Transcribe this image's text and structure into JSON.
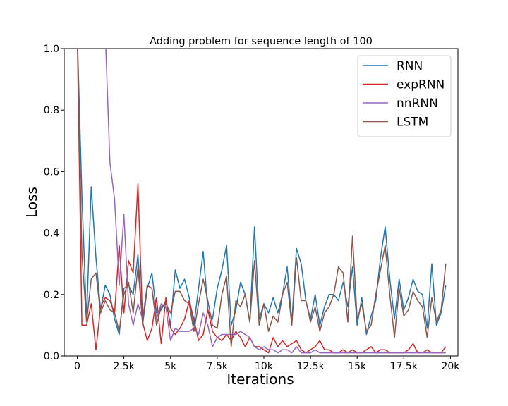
{
  "chart_data": {
    "type": "line",
    "title": "Adding problem for sequence length of 100",
    "xlabel": "Iterations",
    "ylabel": "Loss",
    "xlim": [
      -700,
      20400
    ],
    "ylim": [
      0,
      1.0
    ],
    "xticks": [
      0,
      2500,
      5000,
      7500,
      10000,
      12500,
      15000,
      17500,
      20000
    ],
    "xtick_labels": [
      "0",
      "2.5k",
      "5k",
      "7.5k",
      "10k",
      "12.5k",
      "15k",
      "17.5k",
      "20k"
    ],
    "yticks": [
      0.0,
      0.2,
      0.4,
      0.6,
      0.8,
      1.0
    ],
    "ytick_labels": [
      "0.0",
      "0.2",
      "0.4",
      "0.6",
      "0.8",
      "1.0"
    ],
    "grid": false,
    "legend_position": "top-right",
    "x": [
      0,
      250,
      500,
      750,
      1000,
      1250,
      1500,
      1750,
      2000,
      2250,
      2500,
      2750,
      3000,
      3250,
      3500,
      3750,
      4000,
      4250,
      4500,
      4750,
      5000,
      5250,
      5500,
      5750,
      6000,
      6250,
      6500,
      6750,
      7000,
      7250,
      7500,
      7750,
      8000,
      8250,
      8500,
      8750,
      9000,
      9250,
      9500,
      9750,
      10000,
      10250,
      10500,
      10750,
      11000,
      11250,
      11500,
      11750,
      12000,
      12250,
      12500,
      12750,
      13000,
      13250,
      13500,
      13750,
      14000,
      14250,
      14500,
      14750,
      15000,
      15250,
      15500,
      15750,
      16000,
      16250,
      16500,
      16750,
      17000,
      17250,
      17500,
      17750,
      18000,
      18250,
      18500,
      18750,
      19000,
      19250,
      19500,
      19750
    ],
    "series": [
      {
        "name": "RNN",
        "color": "#1f77b4",
        "values": [
          1.05,
          0.52,
          0.12,
          0.55,
          0.32,
          0.15,
          0.23,
          0.2,
          0.12,
          0.07,
          0.22,
          0.23,
          0.2,
          0.33,
          0.1,
          0.22,
          0.27,
          0.14,
          0.15,
          0.18,
          0.1,
          0.28,
          0.22,
          0.25,
          0.19,
          0.1,
          0.22,
          0.34,
          0.15,
          0.12,
          0.22,
          0.28,
          0.36,
          0.1,
          0.15,
          0.24,
          0.2,
          0.11,
          0.42,
          0.12,
          0.17,
          0.14,
          0.19,
          0.14,
          0.2,
          0.29,
          0.11,
          0.35,
          0.3,
          0.18,
          0.12,
          0.2,
          0.1,
          0.16,
          0.2,
          0.2,
          0.18,
          0.24,
          0.16,
          0.29,
          0.1,
          0.19,
          0.07,
          0.13,
          0.18,
          0.32,
          0.42,
          0.25,
          0.12,
          0.25,
          0.15,
          0.19,
          0.25,
          0.21,
          0.2,
          0.09,
          0.3,
          0.1,
          0.14,
          0.23
        ]
      },
      {
        "name": "expRNN",
        "color": "#d62728",
        "values": [
          1.05,
          0.1,
          0.1,
          0.17,
          0.02,
          0.16,
          0.19,
          0.18,
          0.14,
          0.36,
          0.14,
          0.31,
          0.27,
          0.56,
          0.11,
          0.05,
          0.09,
          0.19,
          0.04,
          0.19,
          0.09,
          0.07,
          0.09,
          0.12,
          0.18,
          0.12,
          0.05,
          0.07,
          0.15,
          0.08,
          0.06,
          0.05,
          0.07,
          0.05,
          0.08,
          0.06,
          0.03,
          0.06,
          0.03,
          0.03,
          0.02,
          0.01,
          0.06,
          0.03,
          0.05,
          0.03,
          0.04,
          0.05,
          0.02,
          0.01,
          0.02,
          0.03,
          0.05,
          0.02,
          0.02,
          0.01,
          0.01,
          0.02,
          0.01,
          0.02,
          0.01,
          0.01,
          0.02,
          0.03,
          0.01,
          0.02,
          0.02,
          0.01,
          0.01,
          0.01,
          0.01,
          0.02,
          0.04,
          0.01,
          0.01,
          0.02,
          0.01,
          0.01,
          0.01,
          0.03
        ]
      },
      {
        "name": "nnRNN",
        "color": "#9467bd",
        "values": [
          1.05,
          1.05,
          1.05,
          1.05,
          1.05,
          1.05,
          1.05,
          0.63,
          0.51,
          0.23,
          0.46,
          0.17,
          0.1,
          0.17,
          0.12,
          0.23,
          0.22,
          0.12,
          0.17,
          0.16,
          0.05,
          0.09,
          0.08,
          0.08,
          0.08,
          0.09,
          0.07,
          0.14,
          0.1,
          0.03,
          0.06,
          0.07,
          0.07,
          0.07,
          0.07,
          0.08,
          0.07,
          0.06,
          0.03,
          0.02,
          0.03,
          0.02,
          0.02,
          0.01,
          0.02,
          0.02,
          0.01,
          0.03,
          0.01,
          0.01,
          0.01,
          0.02,
          0.01,
          0.01,
          0.01,
          0.01,
          0.01,
          0.01,
          0.01,
          0.01,
          0.01,
          0.01,
          0.01,
          0.01,
          0.01,
          0.01,
          0.01,
          0.01,
          0.01,
          0.01,
          0.01,
          0.01,
          0.01,
          0.01,
          0.01,
          0.01,
          0.01,
          0.01,
          0.01,
          0.01
        ]
      },
      {
        "name": "LSTM",
        "color": "#8c564b",
        "values": [
          1.05,
          0.33,
          0.11,
          0.25,
          0.27,
          0.14,
          0.18,
          0.15,
          0.14,
          0.08,
          0.2,
          0.24,
          0.14,
          0.29,
          0.11,
          0.23,
          0.22,
          0.1,
          0.16,
          0.17,
          0.14,
          0.21,
          0.21,
          0.18,
          0.17,
          0.08,
          0.17,
          0.25,
          0.18,
          0.1,
          0.09,
          0.2,
          0.26,
          0.03,
          0.18,
          0.16,
          0.2,
          0.11,
          0.31,
          0.1,
          0.17,
          0.08,
          0.13,
          0.11,
          0.2,
          0.24,
          0.1,
          0.32,
          0.18,
          0.18,
          0.11,
          0.16,
          0.08,
          0.14,
          0.16,
          0.2,
          0.29,
          0.27,
          0.11,
          0.39,
          0.12,
          0.17,
          0.08,
          0.1,
          0.2,
          0.28,
          0.36,
          0.2,
          0.06,
          0.22,
          0.13,
          0.15,
          0.21,
          0.18,
          0.16,
          0.06,
          0.19,
          0.11,
          0.15,
          0.3
        ]
      }
    ]
  }
}
